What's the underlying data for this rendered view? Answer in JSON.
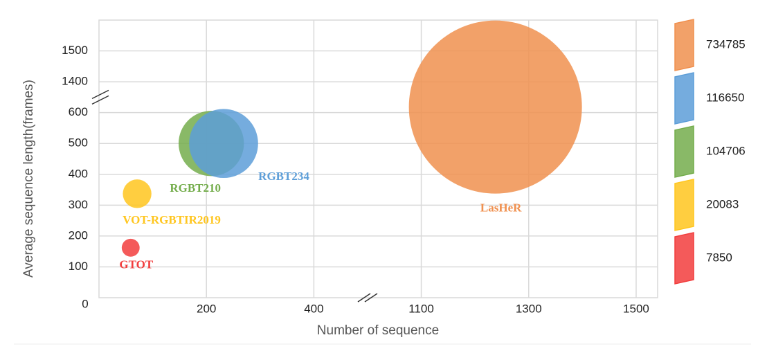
{
  "chart_data": {
    "type": "bubble",
    "x_label": "Number of sequence",
    "y_label": "Average sequence length(frames)",
    "xlim": [
      0,
      1540
    ],
    "x_break": [
      500,
      1000
    ],
    "xticks": [
      200,
      400,
      1100,
      1300,
      1500
    ],
    "ylim": [
      0,
      1600
    ],
    "y_break": [
      650,
      1350
    ],
    "yticks": [
      0,
      100,
      200,
      300,
      400,
      500,
      600,
      1400,
      1500
    ],
    "grid": true,
    "legend": "right",
    "series": [
      {
        "name": "GTOT",
        "color": "#f23d3d",
        "x": 59,
        "y": 162,
        "size": 7850
      },
      {
        "name": "VOT-RGBTIR2019",
        "color": "#ffc61f",
        "x": 71,
        "y": 337,
        "size": 20083
      },
      {
        "name": "RGBT210",
        "color": "#74ad4c",
        "x": 209,
        "y": 500,
        "size": 104706
      },
      {
        "name": "RGBT234",
        "color": "#5d9ed8",
        "x": 232,
        "y": 500,
        "size": 116650
      },
      {
        "name": "LasHeR",
        "color": "#f0904f",
        "x": 1238,
        "y": 618,
        "size": 734785
      }
    ]
  }
}
